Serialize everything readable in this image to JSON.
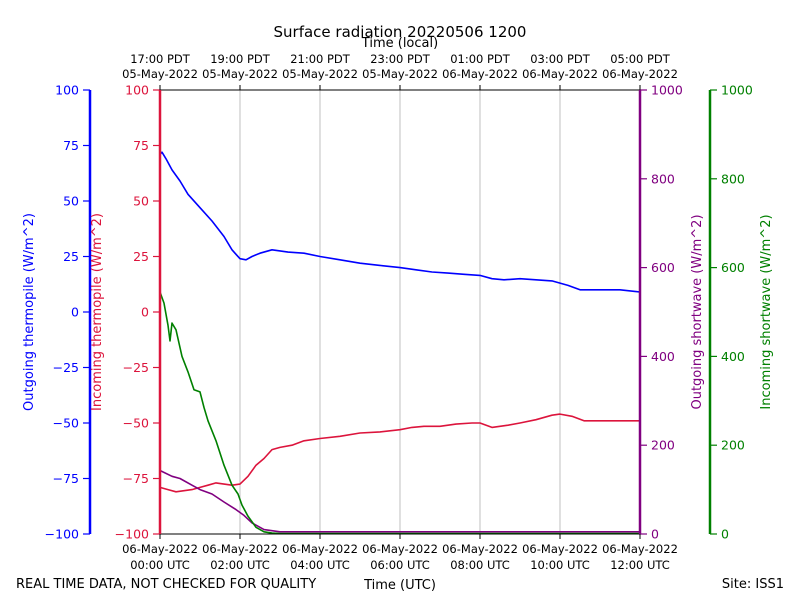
{
  "chart_data": {
    "type": "line",
    "title": "Surface radiation 20220506 1200",
    "top_axis_label": "Time (local)",
    "xlabel": "Time (UTC)",
    "footer_left": "REAL TIME DATA, NOT CHECKED FOR QUALITY",
    "footer_right": "Site: ISS1",
    "x_range_hours": [
      0,
      12
    ],
    "bottom_ticks": [
      {
        "h": 0,
        "line1": "06-May-2022",
        "line2": "00:00 UTC"
      },
      {
        "h": 2,
        "line1": "06-May-2022",
        "line2": "02:00 UTC"
      },
      {
        "h": 4,
        "line1": "06-May-2022",
        "line2": "04:00 UTC"
      },
      {
        "h": 6,
        "line1": "06-May-2022",
        "line2": "06:00 UTC"
      },
      {
        "h": 8,
        "line1": "06-May-2022",
        "line2": "08:00 UTC"
      },
      {
        "h": 10,
        "line1": "06-May-2022",
        "line2": "10:00 UTC"
      },
      {
        "h": 12,
        "line1": "06-May-2022",
        "line2": "12:00 UTC"
      }
    ],
    "top_ticks": [
      {
        "h": 0,
        "line1": "17:00 PDT",
        "line2": "05-May-2022"
      },
      {
        "h": 2,
        "line1": "19:00 PDT",
        "line2": "05-May-2022"
      },
      {
        "h": 4,
        "line1": "21:00 PDT",
        "line2": "05-May-2022"
      },
      {
        "h": 6,
        "line1": "23:00 PDT",
        "line2": "05-May-2022"
      },
      {
        "h": 8,
        "line1": "01:00 PDT",
        "line2": "06-May-2022"
      },
      {
        "h": 10,
        "line1": "03:00 PDT",
        "line2": "06-May-2022"
      },
      {
        "h": 12,
        "line1": "05:00 PDT",
        "line2": "06-May-2022"
      }
    ],
    "axes": [
      {
        "id": "out_thermo",
        "label": "Outgoing thermopile (W/m^2)",
        "color": "#0000ff",
        "range": [
          -100,
          100
        ],
        "ticks": [
          "100",
          "75",
          "50",
          "25",
          "0",
          "−25",
          "−50",
          "−75",
          "−100"
        ]
      },
      {
        "id": "in_thermo",
        "label": "Incoming thermopile (W/m^2)",
        "color": "#dc143c",
        "range": [
          -100,
          100
        ],
        "ticks": [
          "100",
          "75",
          "50",
          "25",
          "0",
          "−25",
          "−50",
          "−75",
          "−100"
        ]
      },
      {
        "id": "out_sw",
        "label": "Outgoing shortwave (W/m^2)",
        "color": "#800080",
        "range": [
          0,
          1000
        ],
        "ticks": [
          "1000",
          "800",
          "600",
          "400",
          "200",
          "0"
        ]
      },
      {
        "id": "in_sw",
        "label": "Incoming shortwave (W/m^2)",
        "color": "#008000",
        "range": [
          0,
          1000
        ],
        "ticks": [
          "1000",
          "800",
          "600",
          "400",
          "200",
          "0"
        ]
      }
    ],
    "series": [
      {
        "name": "Outgoing thermopile",
        "axis": "out_thermo",
        "color": "#0000ff",
        "x": [
          0,
          0.05,
          0.15,
          0.3,
          0.5,
          0.7,
          1.0,
          1.3,
          1.6,
          1.8,
          1.9,
          2.0,
          2.15,
          2.3,
          2.5,
          2.8,
          3.2,
          3.6,
          4.0,
          4.5,
          5.0,
          5.5,
          6.0,
          6.4,
          6.8,
          7.2,
          7.6,
          8.0,
          8.3,
          8.6,
          9.0,
          9.4,
          9.8,
          10.0,
          10.2,
          10.5,
          11.0,
          11.5,
          12.0
        ],
        "values": [
          71,
          72,
          69,
          64,
          59,
          53,
          47,
          41,
          34,
          28,
          26,
          24,
          23.5,
          25,
          26.5,
          28,
          27,
          26.5,
          25,
          23.5,
          22,
          21,
          20,
          19,
          18,
          17.5,
          17,
          16.5,
          15,
          14.5,
          15,
          14.5,
          14,
          13,
          12,
          10,
          10,
          10,
          9
        ]
      },
      {
        "name": "Incoming thermopile",
        "axis": "in_thermo",
        "color": "#dc143c",
        "x": [
          0,
          0.2,
          0.4,
          0.6,
          0.8,
          1.0,
          1.2,
          1.4,
          1.6,
          1.8,
          2.0,
          2.2,
          2.4,
          2.6,
          2.8,
          3.0,
          3.3,
          3.6,
          4.0,
          4.5,
          5.0,
          5.5,
          6.0,
          6.3,
          6.6,
          7.0,
          7.4,
          7.8,
          8.0,
          8.3,
          8.7,
          9.0,
          9.4,
          9.8,
          10.0,
          10.3,
          10.6,
          11.0,
          11.5,
          12.0
        ],
        "values": [
          -79,
          -80,
          -81,
          -80.5,
          -80,
          -79,
          -78,
          -77,
          -77.5,
          -78,
          -77.5,
          -74,
          -69,
          -66,
          -62,
          -61,
          -60,
          -58,
          -57,
          -56,
          -54.5,
          -54,
          -53,
          -52,
          -51.5,
          -51.5,
          -50.5,
          -50,
          -50,
          -52,
          -51,
          -50,
          -48.5,
          -46.5,
          -46,
          -47,
          -49,
          -49,
          -49,
          -49
        ]
      },
      {
        "name": "Outgoing shortwave",
        "axis": "out_sw",
        "color": "#800080",
        "x": [
          0,
          0.3,
          0.5,
          0.8,
          1.0,
          1.3,
          1.6,
          1.9,
          2.1,
          2.3,
          2.6,
          3.0,
          4.0,
          5.0,
          6.0,
          7.0,
          8.0,
          9.0,
          10.0,
          11.0,
          12.0
        ],
        "values": [
          143,
          130,
          125,
          110,
          100,
          90,
          72,
          55,
          42,
          25,
          10,
          5,
          5,
          5,
          5,
          5,
          5,
          5,
          5,
          5,
          5
        ]
      },
      {
        "name": "Incoming shortwave",
        "axis": "in_sw",
        "color": "#008000",
        "x": [
          0,
          0.1,
          0.2,
          0.25,
          0.3,
          0.4,
          0.55,
          0.7,
          0.85,
          1.0,
          1.1,
          1.2,
          1.4,
          1.6,
          1.8,
          1.95,
          2.05,
          2.2,
          2.4,
          2.6,
          2.8,
          3.0,
          4.0,
          5.0,
          6.0,
          7.0,
          8.0,
          9.0,
          10.0,
          11.0,
          12.0
        ],
        "values": [
          545,
          520,
          470,
          435,
          475,
          460,
          400,
          365,
          325,
          320,
          285,
          255,
          210,
          155,
          110,
          90,
          65,
          40,
          15,
          5,
          2,
          1,
          1,
          1,
          1,
          1,
          1,
          1,
          1,
          1,
          1
        ]
      }
    ]
  }
}
